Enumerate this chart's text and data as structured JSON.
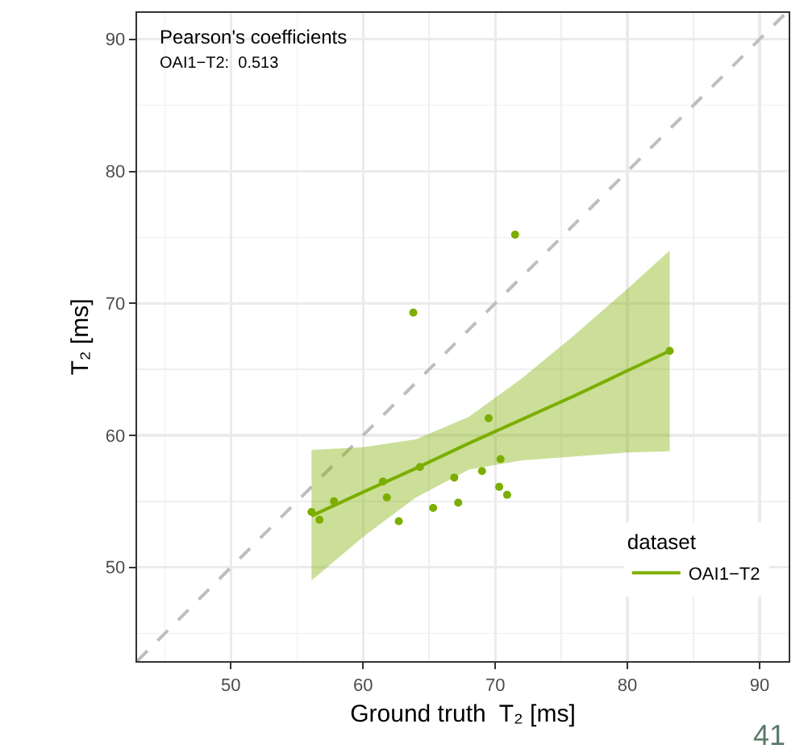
{
  "chart_data": {
    "type": "scatter",
    "xlabel": "Ground truth  T₂ [ms]",
    "ylabel": "T₂ [ms]",
    "legend_title": "dataset",
    "annotations": [
      "Pearson's coefficients",
      "OAI1−T2:  0.513",
      "41"
    ],
    "xlim": [
      42.9,
      92.2
    ],
    "ylim": [
      42.9,
      92
    ],
    "xticks": [
      50,
      60,
      70,
      80,
      90
    ],
    "yticks": [
      50,
      60,
      70,
      80,
      90
    ],
    "grid": true,
    "legend": "bottom right",
    "marker": "circle",
    "series": [
      {
        "type": "line",
        "x": [
          42.9,
          92
        ],
        "values": [
          42.9,
          92
        ],
        "color": "#bebebe",
        "line_style": "dashed",
        "marker": "none"
      },
      {
        "x": [
          63.8,
          83.2,
          69.5,
          56.1,
          56.7,
          57.8,
          61.5,
          61.8,
          62.7,
          64.3,
          65.3,
          66.9,
          67.2,
          69.0,
          70.4,
          70.3,
          70.9,
          71.5
        ],
        "values": [
          69.3,
          66.4,
          61.3,
          54.2,
          53.6,
          55.0,
          56.5,
          55.3,
          53.5,
          57.6,
          54.5,
          56.8,
          54.9,
          57.3,
          58.2,
          56.1,
          55.5,
          75.2
        ],
        "color": "#7cae00"
      },
      {
        "type": "line",
        "name": "OAI1−T2",
        "x": [
          56.1,
          60,
          64,
          68,
          72,
          76,
          80,
          83.2
        ],
        "values": [
          53.9,
          55.7,
          57.5,
          59.4,
          61.2,
          63.0,
          64.9,
          66.4
        ],
        "lower": [
          49.0,
          52.3,
          55.3,
          57.4,
          58.1,
          58.4,
          58.7,
          58.8
        ],
        "upper": [
          58.9,
          59.1,
          59.7,
          61.4,
          64.3,
          67.6,
          71.1,
          74.0
        ],
        "color": "#7cae00",
        "line_style": "solid",
        "marker": "none"
      }
    ]
  }
}
